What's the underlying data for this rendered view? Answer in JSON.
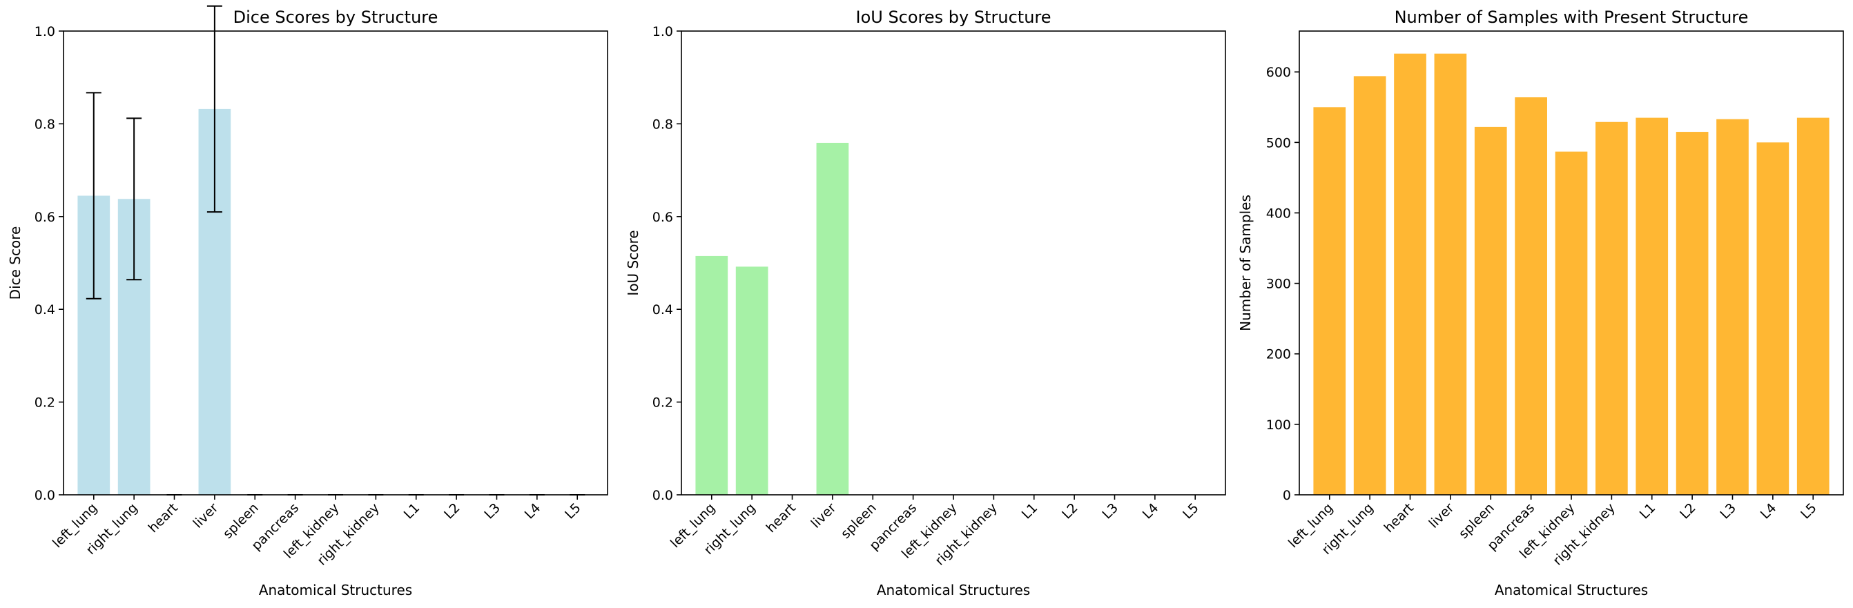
{
  "chart_data": [
    {
      "type": "bar",
      "title": "Dice Scores by Structure",
      "xlabel": "Anatomical Structures",
      "ylabel": "Dice Score",
      "ylim": [
        0,
        1.0
      ],
      "yticks": [
        "0.0",
        "0.2",
        "0.4",
        "0.6",
        "0.8",
        "1.0"
      ],
      "ytick_values": [
        0,
        0.2,
        0.4,
        0.6,
        0.8,
        1.0
      ],
      "categories": [
        "left_lung",
        "right_lung",
        "heart",
        "liver",
        "spleen",
        "pancreas",
        "left_kidney",
        "right_kidney",
        "L1",
        "L2",
        "L3",
        "L4",
        "L5"
      ],
      "values": [
        0.645,
        0.638,
        0,
        0.832,
        0,
        0,
        0,
        0,
        0,
        0,
        0,
        0,
        0
      ],
      "error": [
        0.222,
        0.174,
        0,
        0.222,
        0,
        0,
        0,
        0,
        0,
        0,
        0,
        0,
        0
      ],
      "color": "#add8e6",
      "bar_alpha": 0.8,
      "grid": false
    },
    {
      "type": "bar",
      "title": "IoU Scores by Structure",
      "xlabel": "Anatomical Structures",
      "ylabel": "IoU Score",
      "ylim": [
        0,
        1.0
      ],
      "yticks": [
        "0.0",
        "0.2",
        "0.4",
        "0.6",
        "0.8",
        "1.0"
      ],
      "ytick_values": [
        0,
        0.2,
        0.4,
        0.6,
        0.8,
        1.0
      ],
      "categories": [
        "left_lung",
        "right_lung",
        "heart",
        "liver",
        "spleen",
        "pancreas",
        "left_kidney",
        "right_kidney",
        "L1",
        "L2",
        "L3",
        "L4",
        "L5"
      ],
      "values": [
        0.515,
        0.492,
        0,
        0.759,
        0,
        0,
        0,
        0,
        0,
        0,
        0,
        0,
        0
      ],
      "color": "#90ee90",
      "bar_alpha": 0.8,
      "grid": false
    },
    {
      "type": "bar",
      "title": "Number of Samples with Present Structure",
      "xlabel": "Anatomical Structures",
      "ylabel": "Number of Samples",
      "ylim": [
        0,
        658
      ],
      "yticks": [
        "0",
        "100",
        "200",
        "300",
        "400",
        "500",
        "600"
      ],
      "ytick_values": [
        0,
        100,
        200,
        300,
        400,
        500,
        600
      ],
      "categories": [
        "left_lung",
        "right_lung",
        "heart",
        "liver",
        "spleen",
        "pancreas",
        "left_kidney",
        "right_kidney",
        "L1",
        "L2",
        "L3",
        "L4",
        "L5"
      ],
      "values": [
        550,
        594,
        626,
        626,
        522,
        564,
        487,
        529,
        535,
        515,
        533,
        500,
        535
      ],
      "color": "#ffa500",
      "bar_alpha": 0.8,
      "grid": false
    }
  ]
}
